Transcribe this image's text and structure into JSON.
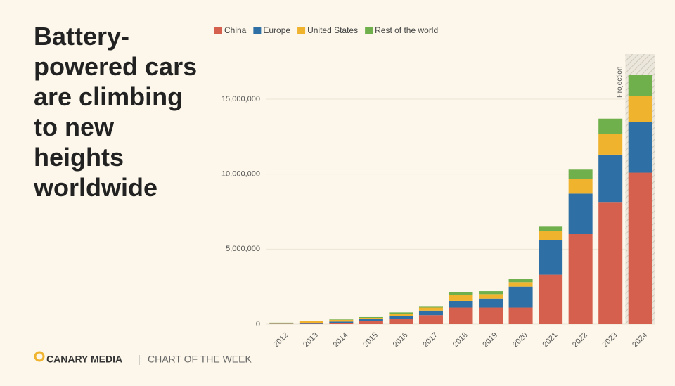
{
  "chart_data": {
    "type": "stacked-bar",
    "title": "Battery-powered cars are climbing to new heights worldwide",
    "annotation": "Projection",
    "categories": [
      "2012",
      "2013",
      "2014",
      "2015",
      "2016",
      "2017",
      "2018",
      "2019",
      "2020",
      "2021",
      "2022",
      "2023",
      "2024"
    ],
    "series": [
      {
        "name": "China",
        "color": "#d4604d",
        "values": [
          10000,
          20000,
          70000,
          200000,
          350000,
          600000,
          1100000,
          1100000,
          1100000,
          3300000,
          6000000,
          8100000,
          10100000
        ]
      },
      {
        "name": "Europe",
        "color": "#2e6fa6",
        "values": [
          20000,
          70000,
          100000,
          150000,
          200000,
          300000,
          450000,
          600000,
          1400000,
          2300000,
          2700000,
          3200000,
          3400000
        ]
      },
      {
        "name": "United States",
        "color": "#f0b32e",
        "values": [
          50000,
          100000,
          120000,
          70000,
          150000,
          200000,
          400000,
          300000,
          300000,
          600000,
          1000000,
          1400000,
          1700000
        ]
      },
      {
        "name": "Rest of the world",
        "color": "#6fb04d",
        "values": [
          20000,
          30000,
          30000,
          50000,
          80000,
          100000,
          200000,
          200000,
          200000,
          300000,
          600000,
          1000000,
          1400000
        ]
      }
    ],
    "ylim": [
      0,
      18000000
    ],
    "yticks": [
      0,
      {
        "value": 5000000,
        "label": "5,000,000"
      },
      {
        "value": 10000000,
        "label": "10,000,000"
      },
      {
        "value": 15000000,
        "label": "15,000,000"
      }
    ],
    "grid": true
  },
  "brand": "CANARY MEDIA",
  "footer": "CHART OF THE WEEK"
}
